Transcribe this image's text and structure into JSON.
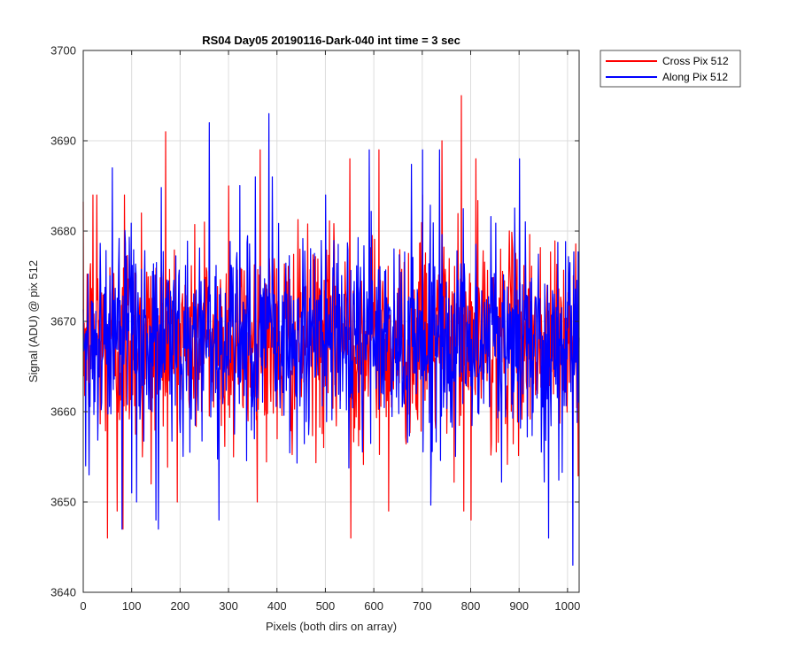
{
  "chart_data": {
    "type": "line",
    "title": "RS04 Day05 20190116-Dark-040 int time = 3 sec",
    "xlabel": "Pixels (both dirs on array)",
    "ylabel": "Signal (ADU) @ pix 512",
    "xlim": [
      0,
      1024
    ],
    "ylim": [
      3640,
      3700
    ],
    "xticks": [
      0,
      100,
      200,
      300,
      400,
      500,
      600,
      700,
      800,
      900,
      1000
    ],
    "yticks": [
      3640,
      3650,
      3660,
      3670,
      3680,
      3690,
      3700
    ],
    "xtick_labels": [
      "0",
      "100",
      "200",
      "300",
      "400",
      "500",
      "600",
      "700",
      "800",
      "900",
      "1000"
    ],
    "ytick_labels": [
      "3640",
      "3650",
      "3660",
      "3670",
      "3680",
      "3690",
      "3700"
    ],
    "grid": true,
    "legend_position": "outside-top-right",
    "series": [
      {
        "name": "Cross Pix 512",
        "color": "#ff0000",
        "n_points": 1024,
        "center": 3668,
        "spread": 5.5,
        "range": [
          3646,
          3695
        ],
        "peaks": [
          {
            "x": 20,
            "y": 3684
          },
          {
            "x": 28,
            "y": 3684
          },
          {
            "x": 50,
            "y": 3646
          },
          {
            "x": 70,
            "y": 3649
          },
          {
            "x": 82,
            "y": 3647
          },
          {
            "x": 85,
            "y": 3684
          },
          {
            "x": 120,
            "y": 3682
          },
          {
            "x": 122,
            "y": 3655
          },
          {
            "x": 140,
            "y": 3652
          },
          {
            "x": 170,
            "y": 3691
          },
          {
            "x": 250,
            "y": 3681
          },
          {
            "x": 300,
            "y": 3685
          },
          {
            "x": 310,
            "y": 3655
          },
          {
            "x": 365,
            "y": 3689
          },
          {
            "x": 400,
            "y": 3657
          },
          {
            "x": 550,
            "y": 3688
          },
          {
            "x": 552,
            "y": 3646
          },
          {
            "x": 610,
            "y": 3689
          },
          {
            "x": 630,
            "y": 3649
          },
          {
            "x": 700,
            "y": 3684
          },
          {
            "x": 740,
            "y": 3690
          },
          {
            "x": 780,
            "y": 3695
          },
          {
            "x": 785,
            "y": 3649
          },
          {
            "x": 800,
            "y": 3648
          },
          {
            "x": 810,
            "y": 3688
          },
          {
            "x": 1010,
            "y": 3653
          }
        ]
      },
      {
        "name": "Along Pix 512",
        "color": "#0000ff",
        "n_points": 1024,
        "center": 3668,
        "spread": 5.5,
        "range": [
          3643,
          3693
        ],
        "peaks": [
          {
            "x": 5,
            "y": 3654
          },
          {
            "x": 12,
            "y": 3653
          },
          {
            "x": 60,
            "y": 3687
          },
          {
            "x": 80,
            "y": 3647
          },
          {
            "x": 100,
            "y": 3651
          },
          {
            "x": 110,
            "y": 3650
          },
          {
            "x": 150,
            "y": 3648
          },
          {
            "x": 155,
            "y": 3647
          },
          {
            "x": 260,
            "y": 3692
          },
          {
            "x": 280,
            "y": 3648
          },
          {
            "x": 355,
            "y": 3686
          },
          {
            "x": 383,
            "y": 3693
          },
          {
            "x": 390,
            "y": 3686
          },
          {
            "x": 500,
            "y": 3684
          },
          {
            "x": 590,
            "y": 3689
          },
          {
            "x": 700,
            "y": 3689
          },
          {
            "x": 735,
            "y": 3689
          },
          {
            "x": 900,
            "y": 3688
          },
          {
            "x": 960,
            "y": 3646
          },
          {
            "x": 1010,
            "y": 3643
          }
        ]
      }
    ]
  }
}
